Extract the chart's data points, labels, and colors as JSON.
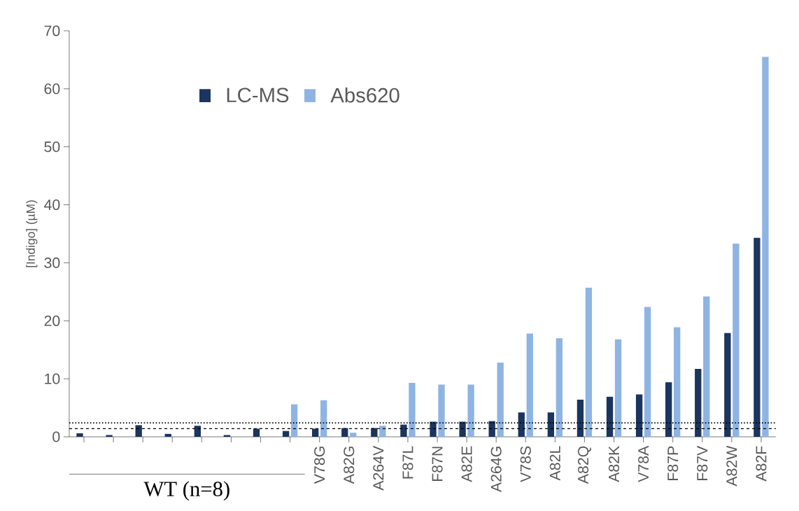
{
  "chart_data": {
    "type": "bar",
    "ylabel": "[Indigo] (µM)",
    "categories": [
      null,
      null,
      null,
      null,
      null,
      null,
      null,
      null,
      "V78G",
      "A82G",
      "A264V",
      "F87L",
      "F87N",
      "A82E",
      "A264G",
      "V78S",
      "A82L",
      "A82Q",
      "A82K",
      "V78A",
      "F87P",
      "F87V",
      "A82W",
      "A82F"
    ],
    "series": [
      {
        "name": "LC-MS",
        "color": "#1a355e",
        "values": [
          0.6,
          0.3,
          2.0,
          0.5,
          1.9,
          0.3,
          1.4,
          1.0,
          1.4,
          1.5,
          1.5,
          2.1,
          2.6,
          2.6,
          2.7,
          4.2,
          4.2,
          6.4,
          6.9,
          7.3,
          9.4,
          11.7,
          17.9,
          34.3
        ]
      },
      {
        "name": "Abs620",
        "color": "#8eb4e3",
        "values": [
          null,
          null,
          null,
          null,
          null,
          null,
          null,
          5.6,
          6.3,
          0.7,
          1.9,
          9.3,
          9.0,
          9.0,
          12.8,
          17.8,
          17.0,
          25.7,
          16.8,
          22.4,
          18.9,
          24.2,
          33.3,
          65.5
        ]
      }
    ],
    "ylim": [
      0,
      70
    ],
    "yticks": [
      0,
      10,
      20,
      30,
      40,
      50,
      60,
      70
    ],
    "ref_lines": [
      {
        "axis": "y",
        "value": 2.4,
        "line_style": "dotted"
      },
      {
        "axis": "y",
        "value": 1.4,
        "line_style": "dashed"
      }
    ],
    "annotations": [
      "WT (n=8)"
    ],
    "legend": "top left"
  }
}
